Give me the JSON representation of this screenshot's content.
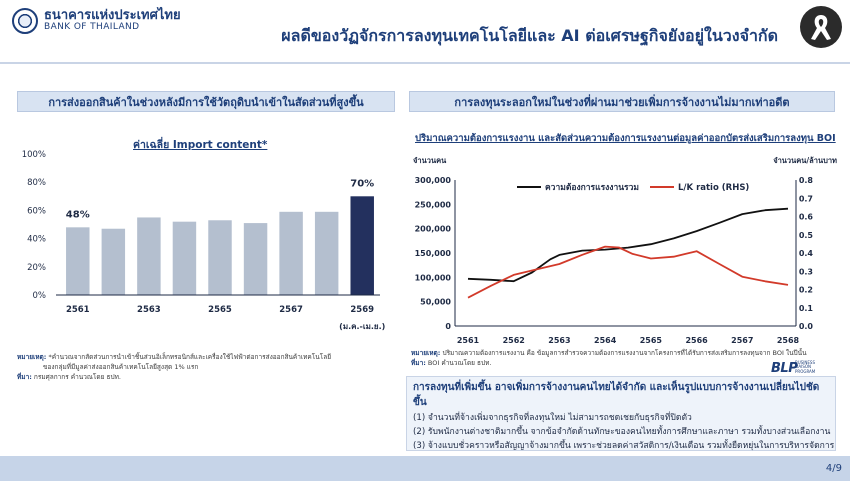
{
  "header": {
    "bank_th": "ธนาคารแห่งประเทศไทย",
    "bank_en": "BANK OF THAILAND",
    "title": "ผลดีของวัฏจักรการลงทุนเทคโนโลยีและ AI ต่อเศรษฐกิจยังอยู่ในวงจำกัด"
  },
  "left_panel": {
    "header": "การส่งออกสินค้าในช่วงหลังมีการใช้วัตถุดิบนำเข้าในสัดส่วนที่สูงขึ้น",
    "note_label": "หมายเหตุ:",
    "note_text": "*คำนวณจากสัดส่วนการนำเข้าชิ้นส่วนอิเล็กทรอนิกส์และเครื่องใช้ไฟฟ้าต่อการส่งออกสินค้าเทคโนโลยี",
    "note_text2": "ของกลุ่มที่มีมูลค่าส่งออกสินค้าเทคโนโลยีสูงสุด 1% แรก",
    "source_label": "ที่มา:",
    "source_text": "กรมศุลกากร คำนวณโดย ธปท."
  },
  "right_panel": {
    "header": "การลงทุนระลอกใหม่ในช่วงที่ผ่านมาช่วยเพิ่มการจ้างงานไม่มากเท่าอดีต",
    "note_label": "หมายเหตุ:",
    "note_text": "ปริมาณความต้องการแรงงาน คือ ข้อมูลการสำรวจความต้องการแรงงานจากโครงการที่ได้รับการส่งเสริมการลงทุนจาก BOI ในปีนั้น",
    "source_label": "ที่มา:",
    "source_text": "BOI คำนวณโดย ธปท."
  },
  "summary": {
    "title": "การลงทุนที่เพิ่มขึ้น อาจเพิ่มการจ้างงานคนไทยได้จำกัด และเห็นรูปแบบการจ้างงานเปลี่ยนไปชัดขึ้น",
    "items": [
      "(1) จำนวนที่จ้างเพิ่มจากธุรกิจที่ลงทุนใหม่ ไม่สามารถชดเชยกับธุรกิจที่ปิดตัว",
      "(2) รับพนักงานต่างชาติมากขึ้น จากข้อจำกัดด้านทักษะของคนไทยทั้งการศึกษาและภาษา รวมทั้งบางส่วนเลือกงาน",
      "(3) จ้างแบบชั่วคราวหรือสัญญาจ้างมากขึ้น เพราะช่วยลดค่าสวัสดิการ/เงินเดือน รวมทั้งยืดหยุ่นในการบริหารจัดการ"
    ]
  },
  "blp": {
    "logo": "BLP",
    "sub1": "BUSINESS LIAISON",
    "sub2": "PROGRAM"
  },
  "footer": {
    "page": "4/9"
  },
  "colors": {
    "navy": "#1e3f7a",
    "bar_grey": "#b4bfcf",
    "bar_highlight": "#23305e",
    "line_black": "#111111",
    "line_red": "#d23a2a"
  },
  "chart_data": [
    {
      "type": "bar",
      "title": "ค่าเฉลี่ย Import content*",
      "x": [
        2561,
        2562,
        2563,
        2564,
        2565,
        2566,
        2567,
        2568,
        2569
      ],
      "x_tick_labels": [
        "2561",
        "2563",
        "2565",
        "2567",
        "2569"
      ],
      "x_note": "(ม.ค.-เม.ย.)",
      "values": [
        48,
        47,
        55,
        52,
        53,
        51,
        59,
        59,
        70
      ],
      "highlight_index": 8,
      "data_labels": [
        {
          "index": 0,
          "text": "48%"
        },
        {
          "index": 8,
          "text": "70%"
        }
      ],
      "y_ticks": [
        "0%",
        "20%",
        "40%",
        "60%",
        "80%",
        "100%"
      ],
      "ylim": [
        0,
        100
      ],
      "unit": "%"
    },
    {
      "type": "line",
      "title": "ปริมาณความต้องการแรงงาน และสัดส่วนความต้องการแรงงานต่อมูลค่าออกบัตรส่งเสริมการลงทุน BOI",
      "y_left_label": "จำนวนคน",
      "y_right_label": "จำนวนคน/ล้านบาท",
      "x": [
        2561,
        2562,
        2563,
        2564,
        2565,
        2566,
        2567,
        2568
      ],
      "x_tick_labels": [
        "2561",
        "2562",
        "2563",
        "2564",
        "2565",
        "2566",
        "2567",
        "2568"
      ],
      "y_left_ticks": [
        "0",
        "50,000",
        "100,000",
        "150,000",
        "200,000",
        "250,000",
        "300,000"
      ],
      "y_right_ticks": [
        "0.0",
        "0.1",
        "0.2",
        "0.3",
        "0.4",
        "0.5",
        "0.6",
        "0.7",
        "0.8"
      ],
      "ylim_left": [
        0,
        300000
      ],
      "ylim_right": [
        0,
        0.8
      ],
      "series": [
        {
          "name": "ความต้องการแรงงานรวม",
          "axis": "left",
          "color": "#111111",
          "x": [
            2561,
            2561.5,
            2562,
            2562.4,
            2562.8,
            2563,
            2563.5,
            2564,
            2564.5,
            2565,
            2565.5,
            2566,
            2566.5,
            2567,
            2567.5,
            2568
          ],
          "values": [
            97000,
            95000,
            92000,
            110000,
            137000,
            146000,
            155000,
            157000,
            161000,
            168000,
            180000,
            195000,
            212000,
            230000,
            238000,
            241000
          ]
        },
        {
          "name": "L/K ratio (RHS)",
          "axis": "right",
          "color": "#d23a2a",
          "x": [
            2561,
            2561.5,
            2562,
            2562.5,
            2563,
            2563.5,
            2564,
            2564.3,
            2564.6,
            2565,
            2565.5,
            2566,
            2566.5,
            2567,
            2567.5,
            2568
          ],
          "values": [
            0.155,
            0.22,
            0.28,
            0.31,
            0.34,
            0.39,
            0.435,
            0.43,
            0.395,
            0.37,
            0.38,
            0.41,
            0.34,
            0.27,
            0.245,
            0.225
          ]
        }
      ]
    }
  ]
}
